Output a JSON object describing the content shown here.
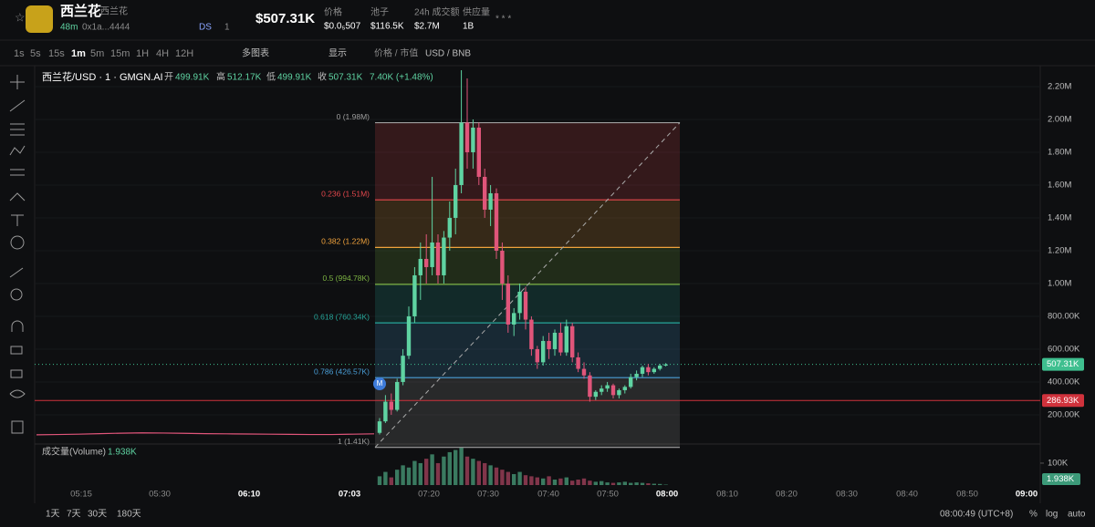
{
  "header": {
    "token": "西兰花",
    "token_sub": "西兰花",
    "age": "48m",
    "address": "0x1a...4444",
    "ds": "DS",
    "holders_badge": "1",
    "price_big": "$507.31K",
    "stats": [
      {
        "label": "价格",
        "value": "$0.0₅507"
      },
      {
        "label": "池子",
        "value": "$116.5K"
      },
      {
        "label": "24h 成交额",
        "value": "$2.7M"
      },
      {
        "label": "供应量",
        "value": "1B"
      }
    ],
    "stars": "* * *"
  },
  "toolbar": {
    "intervals": [
      "1s",
      "5s",
      "15s",
      "1m",
      "5m",
      "15m",
      "1H",
      "4H",
      "12H"
    ],
    "multi": "多图表",
    "display": "显示",
    "price_mcap": "价格 / 市值",
    "currency": "USD / BNB"
  },
  "legend": {
    "symbol": "西兰花/USD · 1 · GMGN.AI",
    "open_label": "开",
    "open": "499.91K",
    "high_label": "高",
    "high": "512.17K",
    "low_label": "低",
    "low": "499.91K",
    "close_label": "收",
    "close": "507.31K",
    "change": "7.40K (+1.48%)"
  },
  "chart": {
    "ylim": [
      33,
      2311
    ],
    "yticks": [
      {
        "value": 200,
        "label": "200.00K"
      },
      {
        "value": 400,
        "label": "400.00K"
      },
      {
        "value": 600,
        "label": "600.00K"
      },
      {
        "value": 800,
        "label": "800.00K"
      },
      {
        "value": 1000,
        "label": "1.00M"
      },
      {
        "value": 1200,
        "label": "1.20M"
      },
      {
        "value": 1400,
        "label": "1.40M"
      },
      {
        "value": 1600,
        "label": "1.60M"
      },
      {
        "value": 1800,
        "label": "1.80M"
      },
      {
        "value": 2000,
        "label": "2.00M"
      },
      {
        "value": 2200,
        "label": "2.20M"
      }
    ],
    "xticks": [
      "05:15",
      "05:30",
      "06:10",
      "07:03",
      "07:20",
      "07:30",
      "07:40",
      "07:50",
      "08:00",
      "08:10",
      "08:20",
      "08:30",
      "08:40",
      "08:50",
      "09:00"
    ],
    "pre_line": [
      78,
      80,
      82,
      85,
      88,
      90,
      89,
      87,
      85,
      84,
      83,
      82,
      81,
      80,
      80,
      82,
      84
    ],
    "candles": [
      {
        "open": 90,
        "high": 180,
        "low": 80,
        "close": 160
      },
      {
        "open": 160,
        "high": 320,
        "low": 150,
        "close": 280
      },
      {
        "open": 280,
        "high": 330,
        "low": 200,
        "close": 230
      },
      {
        "open": 230,
        "high": 420,
        "low": 220,
        "close": 400
      },
      {
        "open": 400,
        "high": 600,
        "low": 380,
        "close": 560
      },
      {
        "open": 560,
        "high": 860,
        "low": 540,
        "close": 800
      },
      {
        "open": 800,
        "high": 1100,
        "low": 760,
        "close": 1050
      },
      {
        "open": 1050,
        "high": 1250,
        "low": 900,
        "close": 1150
      },
      {
        "open": 1150,
        "high": 1300,
        "low": 1000,
        "close": 1100
      },
      {
        "open": 1100,
        "high": 1650,
        "low": 1050,
        "close": 1250
      },
      {
        "open": 1250,
        "high": 1300,
        "low": 1000,
        "close": 1050
      },
      {
        "open": 1050,
        "high": 1320,
        "low": 1000,
        "close": 1280
      },
      {
        "open": 1280,
        "high": 1500,
        "low": 1200,
        "close": 1400
      },
      {
        "open": 1400,
        "high": 1700,
        "low": 1300,
        "close": 1600
      },
      {
        "open": 1600,
        "high": 2300,
        "low": 1550,
        "close": 1980
      },
      {
        "open": 1980,
        "high": 2250,
        "low": 1700,
        "close": 1800
      },
      {
        "open": 1800,
        "high": 2000,
        "low": 1700,
        "close": 1950
      },
      {
        "open": 1950,
        "high": 1980,
        "low": 1600,
        "close": 1650
      },
      {
        "open": 1650,
        "high": 1700,
        "low": 1400,
        "close": 1450
      },
      {
        "open": 1450,
        "high": 1600,
        "low": 1350,
        "close": 1550
      },
      {
        "open": 1550,
        "high": 1580,
        "low": 1150,
        "close": 1200
      },
      {
        "open": 1200,
        "high": 1250,
        "low": 900,
        "close": 1000
      },
      {
        "open": 1000,
        "high": 1050,
        "low": 700,
        "close": 750
      },
      {
        "open": 750,
        "high": 850,
        "low": 680,
        "close": 820
      },
      {
        "open": 820,
        "high": 1000,
        "low": 780,
        "close": 950
      },
      {
        "open": 950,
        "high": 980,
        "low": 720,
        "close": 780
      },
      {
        "open": 780,
        "high": 800,
        "low": 560,
        "close": 600
      },
      {
        "open": 600,
        "high": 620,
        "low": 480,
        "close": 520
      },
      {
        "open": 520,
        "high": 680,
        "low": 500,
        "close": 650
      },
      {
        "open": 650,
        "high": 700,
        "low": 540,
        "close": 600
      },
      {
        "open": 600,
        "high": 720,
        "low": 560,
        "close": 700
      },
      {
        "open": 700,
        "high": 760,
        "low": 560,
        "close": 580
      },
      {
        "open": 580,
        "high": 780,
        "low": 560,
        "close": 740
      },
      {
        "open": 740,
        "high": 760,
        "low": 520,
        "close": 550
      },
      {
        "open": 550,
        "high": 580,
        "low": 460,
        "close": 480
      },
      {
        "open": 480,
        "high": 520,
        "low": 420,
        "close": 440
      },
      {
        "open": 440,
        "high": 460,
        "low": 280,
        "close": 310
      },
      {
        "open": 310,
        "high": 350,
        "low": 290,
        "close": 340
      },
      {
        "open": 340,
        "high": 380,
        "low": 320,
        "close": 360
      },
      {
        "open": 360,
        "high": 400,
        "low": 340,
        "close": 380
      },
      {
        "open": 380,
        "high": 390,
        "low": 300,
        "close": 320
      },
      {
        "open": 320,
        "high": 360,
        "low": 300,
        "close": 350
      },
      {
        "open": 350,
        "high": 380,
        "low": 330,
        "close": 370
      },
      {
        "open": 370,
        "high": 450,
        "low": 360,
        "close": 430
      },
      {
        "open": 430,
        "high": 470,
        "low": 410,
        "close": 450
      },
      {
        "open": 450,
        "high": 500,
        "low": 430,
        "close": 490
      },
      {
        "open": 490,
        "high": 510,
        "low": 440,
        "close": 460
      },
      {
        "open": 460,
        "high": 490,
        "low": 450,
        "close": 480
      },
      {
        "open": 480,
        "high": 510,
        "low": 470,
        "close": 500
      },
      {
        "open": 500,
        "high": 515,
        "low": 495,
        "close": 507
      }
    ],
    "fib": [
      {
        "value": 1980,
        "label": "0 (1.98M)",
        "color": "#9e9e9e"
      },
      {
        "value": 1510,
        "label": "0.236 (1.51M)",
        "color": "#e5484d"
      },
      {
        "value": 1220,
        "label": "0.382 (1.22M)",
        "color": "#f0a23c"
      },
      {
        "value": 994.78,
        "label": "0.5 (994.78K)",
        "color": "#7cb342"
      },
      {
        "value": 760.34,
        "label": "0.618 (760.34K)",
        "color": "#26a69a"
      },
      {
        "value": 426.57,
        "label": "0.786 (426.57K)",
        "color": "#4a9fd8"
      },
      {
        "value": 1.41,
        "label": "1 (1.41K)",
        "color": "#9e9e9e"
      }
    ],
    "last_price": {
      "value": 507.31,
      "label": "507.31K",
      "color": "#3fbf8f"
    },
    "hline": {
      "value": 286.93,
      "label": "286.93K",
      "color": "#d0323c"
    },
    "marker": "M",
    "volume_title": "成交量(Volume)",
    "volume_last": "1.938K",
    "vlim": [
      0,
      183
    ],
    "vticks": [
      {
        "value": 100,
        "label": "100K"
      }
    ],
    "volumes": [
      40,
      60,
      35,
      70,
      90,
      80,
      110,
      100,
      120,
      140,
      100,
      130,
      150,
      160,
      170,
      130,
      120,
      110,
      100,
      90,
      80,
      70,
      60,
      50,
      60,
      45,
      40,
      35,
      30,
      40,
      25,
      30,
      35,
      20,
      25,
      30,
      20,
      15,
      18,
      12,
      10,
      12,
      15,
      10,
      12,
      10,
      8,
      6,
      5,
      1.938
    ],
    "up_color": "#5fd3a2",
    "down_color": "#e0557a"
  },
  "footer": {
    "ranges": [
      "1天",
      "7天",
      "30天",
      "180天"
    ],
    "clock": "08:00:49 (UTC+8)",
    "pct": "%",
    "log": "log",
    "auto": "auto"
  }
}
